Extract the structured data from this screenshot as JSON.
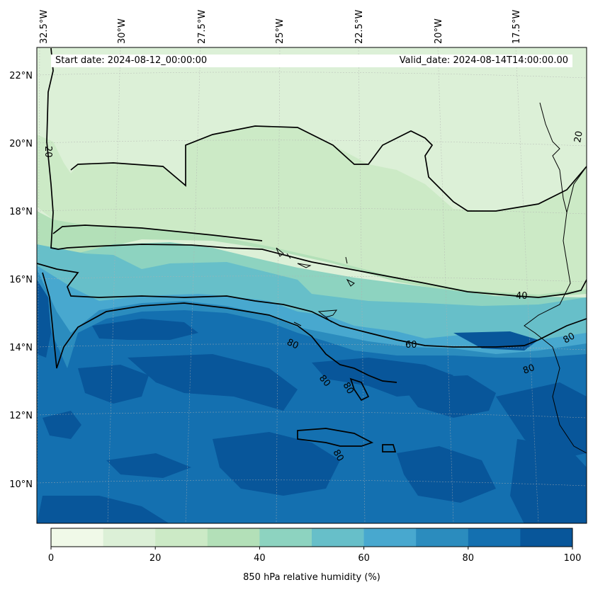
{
  "map": {
    "start_date": "Start date: 2024-08-12_00:00:00",
    "valid_date": "Valid_date: 2024-08-14T14:00:00.00",
    "lon_labels": [
      "32.5°W",
      "30°W",
      "27.5°W",
      "25°W",
      "22.5°W",
      "20°W",
      "17.5°W"
    ],
    "lat_labels": [
      "22°N",
      "20°N",
      "18°N",
      "16°N",
      "14°N",
      "12°N",
      "10°N"
    ],
    "contour_labels": [
      {
        "text": "20",
        "id": "contour-20-west"
      },
      {
        "text": "20",
        "id": "contour-20-east"
      },
      {
        "text": "40",
        "id": "contour-40"
      },
      {
        "text": "60",
        "id": "contour-60"
      },
      {
        "text": "80",
        "id": "contour-80-a"
      },
      {
        "text": "80",
        "id": "contour-80-b"
      },
      {
        "text": "80",
        "id": "contour-80-c"
      },
      {
        "text": "80",
        "id": "contour-80-d"
      },
      {
        "text": "80",
        "id": "contour-80-e"
      },
      {
        "text": "80",
        "id": "contour-80-f"
      }
    ],
    "colors": {
      "rh_0_10": "#f0f9e8",
      "rh_10_20": "#dcf0d7",
      "rh_20_30": "#cceac6",
      "rh_30_40": "#b3e0b8",
      "rh_40_50": "#8dd3c0",
      "rh_50_60": "#67bfc9",
      "rh_60_70": "#48a8cf",
      "rh_70_80": "#2b8cbe",
      "rh_80_90": "#1470b0",
      "rh_90_100": "#08569a"
    }
  },
  "colorbar": {
    "ticks": [
      "0",
      "20",
      "40",
      "60",
      "80",
      "100"
    ],
    "label": "850 hPa relative humidity (%)",
    "levels": [
      0,
      10,
      20,
      30,
      40,
      50,
      60,
      70,
      80,
      90,
      100
    ]
  }
}
